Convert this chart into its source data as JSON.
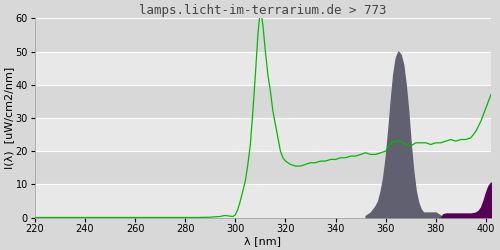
{
  "title": "lamps.licht-im-terrarium.de > 773",
  "title_fontsize": 9,
  "xlabel": "λ [nm]",
  "ylabel": "I(λ)  [uW/cm2/nm]",
  "xlabel_fontsize": 8,
  "ylabel_fontsize": 8,
  "xlim": [
    220,
    402
  ],
  "ylim": [
    0,
    60
  ],
  "xticks": [
    220,
    240,
    260,
    280,
    300,
    320,
    340,
    360,
    380,
    400
  ],
  "yticks": [
    0,
    10,
    20,
    30,
    40,
    50,
    60
  ],
  "bg_color": "#d8d8d8",
  "plot_bg_color_light": "#e8e8e8",
  "plot_bg_color_dark": "#d8d8d8",
  "grid_color": "#ffffff",
  "line_color": "#00bb00",
  "fill_dark_color": "#606070",
  "fill_purple_color": "#550055",
  "green_line_x": [
    220,
    240,
    260,
    270,
    280,
    285,
    290,
    292,
    294,
    295,
    296,
    297,
    298,
    299,
    300,
    301,
    302,
    303,
    304,
    305,
    306,
    307,
    308,
    309,
    310,
    311,
    312,
    313,
    314,
    315,
    316,
    317,
    318,
    319,
    320,
    322,
    324,
    326,
    328,
    330,
    332,
    334,
    336,
    338,
    340,
    342,
    344,
    346,
    348,
    350,
    352,
    354,
    356,
    358,
    360,
    362,
    364,
    366,
    368,
    370,
    372,
    374,
    376,
    378,
    380,
    382,
    384,
    386,
    388,
    390,
    392,
    394,
    396,
    398,
    400,
    402
  ],
  "green_line_y": [
    0,
    0,
    0,
    0,
    0,
    0,
    0.1,
    0.2,
    0.3,
    0.5,
    0.6,
    0.5,
    0.4,
    0.3,
    0.8,
    2.5,
    5.0,
    8.0,
    11.0,
    16.0,
    22.0,
    32.0,
    43.0,
    55.0,
    63.0,
    58.0,
    50.0,
    43.0,
    38.0,
    32.0,
    28.0,
    24.0,
    20.0,
    18.0,
    17.0,
    16.0,
    15.5,
    15.5,
    16.0,
    16.5,
    16.5,
    17.0,
    17.0,
    17.5,
    17.5,
    18.0,
    18.0,
    18.5,
    18.5,
    19.0,
    19.5,
    19.0,
    19.0,
    19.5,
    20.0,
    22.5,
    23.0,
    23.0,
    22.0,
    21.5,
    22.5,
    22.5,
    22.5,
    22.0,
    22.5,
    22.5,
    23.0,
    23.5,
    23.0,
    23.5,
    23.5,
    24.0,
    26.0,
    29.0,
    33.0,
    37.0
  ],
  "dark_fill_x": [
    352,
    354,
    356,
    357,
    358,
    359,
    360,
    361,
    362,
    363,
    364,
    365,
    366,
    367,
    368,
    369,
    370,
    371,
    372,
    373,
    374,
    375,
    376,
    377,
    378,
    379,
    380,
    381,
    382
  ],
  "dark_fill_y": [
    0.5,
    1.5,
    3.5,
    5,
    8,
    12,
    18,
    26,
    35,
    43,
    48,
    50,
    49,
    46,
    40,
    32,
    22,
    14,
    8,
    4.5,
    2.5,
    1.5,
    1.5,
    1.5,
    1.5,
    1.5,
    1.5,
    1.0,
    0.5
  ],
  "purple_fill_x": [
    382,
    383,
    384,
    386,
    388,
    390,
    392,
    394,
    395,
    396,
    397,
    398,
    399,
    400,
    401,
    402
  ],
  "purple_fill_y": [
    0,
    1.0,
    1.2,
    1.2,
    1.2,
    1.2,
    1.2,
    1.2,
    1.3,
    1.5,
    2.0,
    3.0,
    5.0,
    7.5,
    9.5,
    10.5
  ]
}
